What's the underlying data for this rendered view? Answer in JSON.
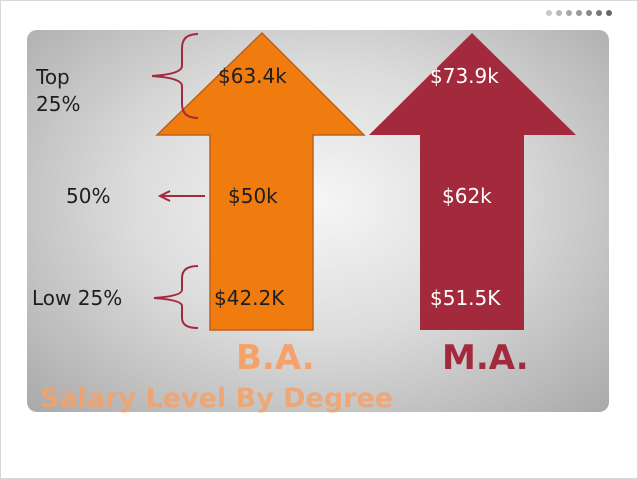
{
  "title": "Salary Level By Degree",
  "colors": {
    "ba_arrow": "#F07C0F",
    "ma_arrow": "#A32A3C",
    "ba_label": "#F5A26A",
    "ma_label": "#A32A3C",
    "bracket": "#A32A3C",
    "title": "#F5A26A"
  },
  "levels": {
    "top": "Top\n25%",
    "median": "50%",
    "low": "Low 25%"
  },
  "degrees": [
    {
      "label": "B.A.",
      "top": "$63.4k",
      "median": "$50k",
      "low": "$42.2K"
    },
    {
      "label": "M.A.",
      "top": "$73.9k",
      "median": "$62k",
      "low": "$51.5K"
    }
  ],
  "chart_data": {
    "type": "table",
    "title": "Salary Level By Degree",
    "columns": [
      "B.A.",
      "M.A."
    ],
    "rows": [
      {
        "level": "Top 25%",
        "values": [
          "$63.4k",
          "$73.9k"
        ]
      },
      {
        "level": "50%",
        "values": [
          "$50k",
          "$62k"
        ]
      },
      {
        "level": "Low 25%",
        "values": [
          "$42.2K",
          "$51.5K"
        ]
      }
    ]
  }
}
